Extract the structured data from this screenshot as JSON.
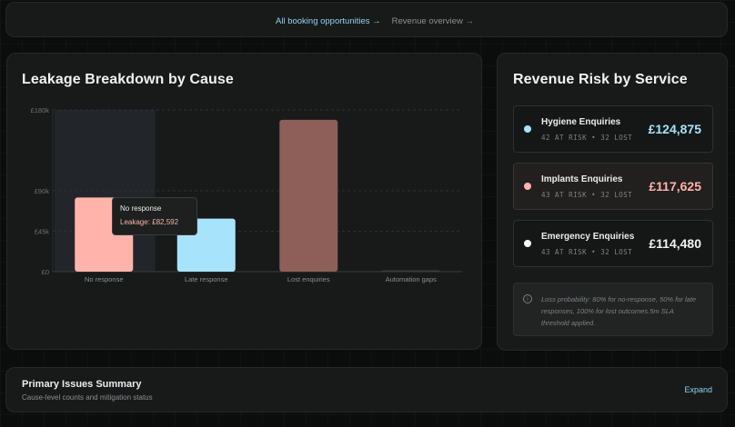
{
  "topbar": {
    "link_all": "All booking opportunities →",
    "link_revenue": "Revenue overview →"
  },
  "leakage": {
    "title": "Leakage Breakdown by Cause",
    "tooltip": {
      "title": "No response",
      "value": "Leakage: £82,592"
    }
  },
  "chart_data": {
    "type": "bar",
    "title": "Leakage Breakdown by Cause",
    "categories": [
      "No response",
      "Late response",
      "Lost enquiries",
      "Automation gaps"
    ],
    "values": [
      82592,
      59000,
      169000,
      900
    ],
    "colors": [
      "#ffb3ab",
      "#a7e3fb",
      "#8e5e58",
      "#3a3d3d"
    ],
    "ylim": [
      0,
      180000
    ],
    "yticks": [
      0,
      45000,
      90000,
      180000
    ],
    "ytick_labels": [
      "£0",
      "£45k",
      "£90k",
      "£180k"
    ],
    "grid": true,
    "highlight_index": 0
  },
  "risk": {
    "title": "Revenue Risk by Service",
    "services": [
      {
        "name": "Hygiene Enquiries",
        "meta": "42 AT RISK • 32 LOST",
        "amount": "£124,875",
        "dot_color": "#a7e3fb",
        "amount_color": "#a7e3fb"
      },
      {
        "name": "Implants Enquiries",
        "meta": "43 AT RISK • 32 LOST",
        "amount": "£117,625",
        "dot_color": "#ffb3ab",
        "amount_color": "#ffb3ab"
      },
      {
        "name": "Emergency Enquiries",
        "meta": "43 AT RISK • 32 LOST",
        "amount": "£114,480",
        "dot_color": "#ffffff",
        "amount_color": "#f2f2f2"
      }
    ],
    "note": "Loss probability: 80% for no-response, 50% for late responses, 100% for lost outcomes.5m SLA threshold applied."
  },
  "summary": {
    "title": "Primary Issues Summary",
    "subtitle": "Cause-level counts and mitigation status",
    "expand": "Expand"
  }
}
